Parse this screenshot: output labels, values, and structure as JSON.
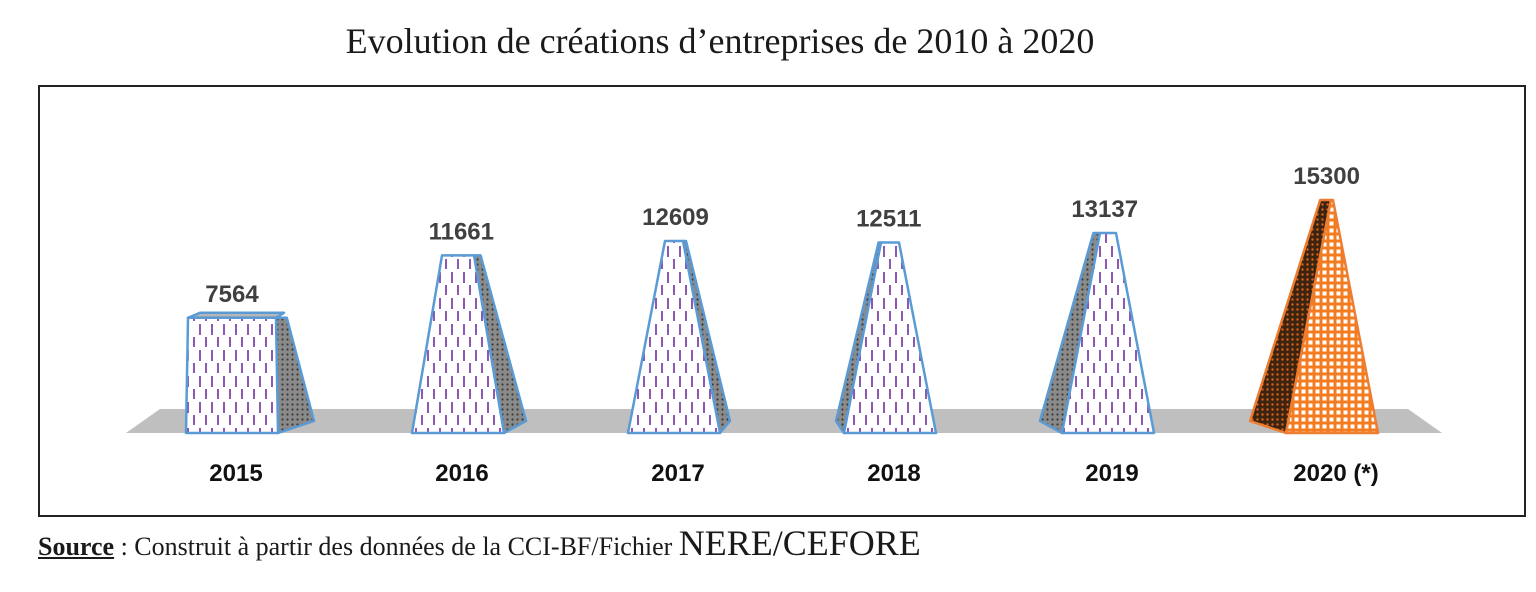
{
  "chart_data": {
    "type": "bar",
    "title": "Evolution de créations d’entreprises de 2010 à 2020",
    "categories": [
      "2015",
      "2016",
      "2017",
      "2018",
      "2019",
      "2020 (*)"
    ],
    "values": [
      7564,
      11661,
      12609,
      12511,
      13137,
      15300
    ],
    "value_labels": [
      "7564",
      "11661",
      "12609",
      "12511",
      "13137",
      "15300"
    ],
    "xlabel": "",
    "ylabel": "",
    "ylim": [
      0,
      16000
    ],
    "grid": false,
    "legend": "none",
    "colors": {
      "historic_fill": "#ffffff",
      "historic_outline": "#5b9bd5",
      "historic_pattern": "#7030a0",
      "highlight_fill": "#f47c20",
      "highlight_outline": "#ed7d31",
      "floor": "#bfbfbf"
    }
  },
  "source": {
    "label": "Source",
    "text": " : Construit à partir des données de la CCI-BF/Fichier ",
    "tail": "NERE/CEFORE"
  }
}
